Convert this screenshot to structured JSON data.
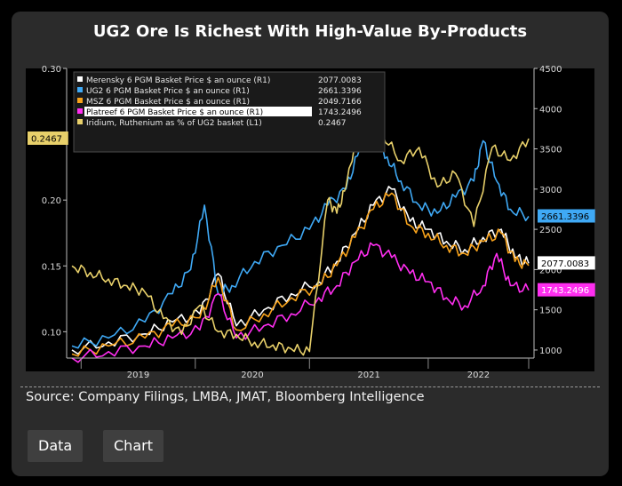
{
  "title": "UG2 Ore Is Richest With High-Value By-Products",
  "source": "Source: Company Filings, LMBA, JMAT, Bloomberg Intelligence",
  "buttons": {
    "data_label": "Data",
    "chart_label": "Chart"
  },
  "colors": {
    "merensky": "#ffffff",
    "ug2": "#3fa9f5",
    "msz": "#f7a21b",
    "platreef": "#ff2ef0",
    "iridium": "#e8d06a"
  },
  "chart_data": {
    "type": "line",
    "title": "UG2 Ore Is Richest With High-Value By-Products",
    "x_ticks": [
      "2019",
      "2020",
      "2021",
      "2022"
    ],
    "left_axis": {
      "label": "L1",
      "ticks": [
        "0.10",
        "0.15",
        "0.20",
        "0.25",
        "0.30"
      ],
      "range": [
        0.08,
        0.3
      ]
    },
    "right_axis": {
      "label": "R1",
      "ticks": [
        "1000",
        "1500",
        "2000",
        "2500",
        "3000",
        "3500",
        "4000",
        "4500"
      ],
      "range": [
        900,
        4500
      ]
    },
    "legend": [
      {
        "label": "Merensky 6 PGM Basket Price $ an ounce (R1)",
        "value": "2077.0083"
      },
      {
        "label": "UG2 6 PGM Basket Price $ an ounce (R1)",
        "value": "2661.3396"
      },
      {
        "label": "MSZ 6 PGM Basket Price $ an ounce (R1)",
        "value": "2049.7166"
      },
      {
        "label": "Platreef 6 PGM Basket Price $ an ounce (R1)",
        "value": "1743.2496"
      },
      {
        "label": "Iridium, Ruthenium as % of UG2 basket (L1)",
        "value": "0.2467"
      }
    ],
    "end_labels": {
      "iridium": "0.2467",
      "ug2": "2661.3396",
      "merensky": "2077.0083",
      "platreef": "1743.2496"
    },
    "series": [
      {
        "name": "Merensky",
        "key": "merensky",
        "axis": "right",
        "t": [
          0.0,
          0.08,
          0.16,
          0.22,
          0.28,
          0.32,
          0.36,
          0.42,
          0.48,
          0.54,
          0.58,
          0.62,
          0.66,
          0.7,
          0.74,
          0.78,
          0.82,
          0.86,
          0.9,
          0.94,
          0.97,
          1.0
        ],
        "values": [
          1000,
          1100,
          1200,
          1350,
          1450,
          1950,
          1300,
          1500,
          1700,
          1850,
          2100,
          2450,
          2800,
          3000,
          2600,
          2500,
          2350,
          2250,
          2400,
          2500,
          2150,
          2077
        ]
      },
      {
        "name": "UG2",
        "key": "ug2",
        "axis": "right",
        "t": [
          0.0,
          0.08,
          0.16,
          0.22,
          0.26,
          0.29,
          0.32,
          0.35,
          0.4,
          0.46,
          0.52,
          0.56,
          0.6,
          0.63,
          0.66,
          0.69,
          0.72,
          0.76,
          0.8,
          0.84,
          0.88,
          0.9,
          0.93,
          0.96,
          1.0
        ],
        "values": [
          1050,
          1150,
          1350,
          1700,
          2000,
          2800,
          1700,
          1800,
          2100,
          2300,
          2500,
          2800,
          3000,
          3500,
          3700,
          3400,
          3100,
          2800,
          2700,
          2900,
          3100,
          3600,
          3100,
          2750,
          2661
        ]
      },
      {
        "name": "MSZ",
        "key": "msz",
        "axis": "right",
        "t": [
          0.0,
          0.08,
          0.16,
          0.22,
          0.28,
          0.32,
          0.36,
          0.42,
          0.48,
          0.54,
          0.58,
          0.62,
          0.66,
          0.7,
          0.74,
          0.78,
          0.82,
          0.86,
          0.9,
          0.94,
          0.97,
          1.0
        ],
        "values": [
          950,
          1050,
          1150,
          1300,
          1400,
          1900,
          1250,
          1450,
          1650,
          1800,
          2050,
          2400,
          2750,
          2950,
          2550,
          2450,
          2300,
          2200,
          2350,
          2450,
          2100,
          2050
        ]
      },
      {
        "name": "Platreef",
        "key": "platreef",
        "axis": "right",
        "t": [
          0.0,
          0.08,
          0.16,
          0.22,
          0.28,
          0.32,
          0.36,
          0.42,
          0.48,
          0.54,
          0.58,
          0.62,
          0.66,
          0.7,
          0.74,
          0.78,
          0.82,
          0.86,
          0.9,
          0.93,
          0.96,
          1.0
        ],
        "values": [
          900,
          980,
          1050,
          1150,
          1250,
          1700,
          1150,
          1300,
          1450,
          1650,
          1800,
          2100,
          2300,
          2150,
          1950,
          1850,
          1650,
          1550,
          1800,
          2200,
          1800,
          1743
        ]
      },
      {
        "name": "Iridium",
        "key": "iridium",
        "axis": "left",
        "t": [
          0.0,
          0.04,
          0.08,
          0.12,
          0.16,
          0.2,
          0.24,
          0.28,
          0.32,
          0.36,
          0.4,
          0.44,
          0.48,
          0.52,
          0.56,
          0.58,
          0.6,
          0.64,
          0.68,
          0.72,
          0.76,
          0.8,
          0.84,
          0.88,
          0.92,
          0.96,
          1.0
        ],
        "values": [
          0.15,
          0.145,
          0.14,
          0.135,
          0.13,
          0.11,
          0.098,
          0.12,
          0.1,
          0.098,
          0.092,
          0.09,
          0.087,
          0.085,
          0.2,
          0.19,
          0.21,
          0.28,
          0.25,
          0.23,
          0.24,
          0.21,
          0.22,
          0.18,
          0.24,
          0.23,
          0.2467
        ]
      }
    ]
  }
}
